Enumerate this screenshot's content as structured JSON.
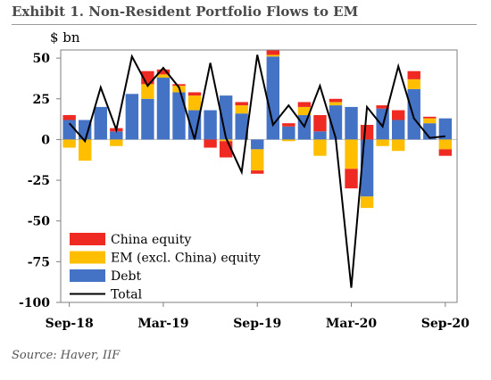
{
  "title": "Exhibit 1. Non-Resident Portfolio Flows to EM",
  "source": "Source: Haver, IIF",
  "colors": {
    "china_equity": "#ee2a22",
    "em_equity": "#ffbf00",
    "debt": "#4472c4",
    "total": "#000000"
  },
  "chart_data": {
    "type": "bar",
    "stacked": true,
    "ylabel": "$ bn",
    "ylim": [
      -100,
      55
    ],
    "yticks": [
      50,
      25,
      0,
      -25,
      -50,
      -75,
      -100
    ],
    "ytick_labels": [
      "50",
      "25",
      "0",
      "-25",
      "-50",
      "-75",
      "-100"
    ],
    "xtick_labels": [
      "Sep-18",
      "Mar-19",
      "Sep-19",
      "Mar-20",
      "Sep-20"
    ],
    "legend_position": "bottom-left",
    "months": [
      "Sep-18",
      "Oct-18",
      "Nov-18",
      "Dec-18",
      "Jan-19",
      "Feb-19",
      "Mar-19",
      "Apr-19",
      "May-19",
      "Jun-19",
      "Jul-19",
      "Aug-19",
      "Sep-19",
      "Oct-19",
      "Nov-19",
      "Dec-19",
      "Jan-20",
      "Feb-20",
      "Mar-20",
      "Apr-20",
      "May-20",
      "Jun-20",
      "Jul-20",
      "Aug-20",
      "Sep-20"
    ],
    "series": [
      {
        "name": "China equity",
        "values": [
          3,
          0,
          0,
          2,
          0,
          8,
          3,
          1,
          2,
          -5,
          -10,
          2,
          -2,
          3,
          2,
          3,
          10,
          2,
          -12,
          9,
          2,
          6,
          5,
          1,
          -4
        ]
      },
      {
        "name": "EM (excl. China) equity",
        "values": [
          -5,
          -13,
          0,
          -4,
          0,
          9,
          2,
          4,
          9,
          0,
          -1,
          5,
          -13,
          1,
          -1,
          5,
          -10,
          2,
          -18,
          -7,
          -4,
          -7,
          6,
          3,
          -6
        ]
      },
      {
        "name": "Debt",
        "values": [
          12,
          12,
          20,
          5,
          28,
          25,
          38,
          29,
          18,
          18,
          27,
          16,
          -6,
          51,
          8,
          15,
          5,
          21,
          20,
          -35,
          19,
          12,
          31,
          10,
          13
        ]
      },
      {
        "name": "Total",
        "values": [
          10,
          -1,
          32,
          6,
          51,
          33,
          44,
          32,
          0,
          47,
          1,
          -20,
          52,
          9,
          21,
          8,
          33,
          1,
          -91,
          20,
          8,
          45,
          13,
          1,
          2
        ]
      }
    ]
  }
}
